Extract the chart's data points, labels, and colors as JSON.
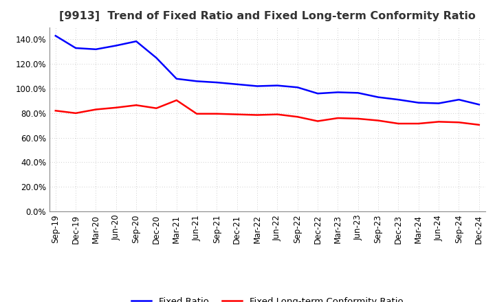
{
  "title": "[9913]  Trend of Fixed Ratio and Fixed Long-term Conformity Ratio",
  "x_labels": [
    "Sep-19",
    "Dec-19",
    "Mar-20",
    "Jun-20",
    "Sep-20",
    "Dec-20",
    "Mar-21",
    "Jun-21",
    "Sep-21",
    "Dec-21",
    "Mar-22",
    "Jun-22",
    "Sep-22",
    "Dec-22",
    "Mar-23",
    "Jun-23",
    "Sep-23",
    "Dec-23",
    "Mar-24",
    "Jun-24",
    "Sep-24",
    "Dec-24"
  ],
  "fixed_ratio": [
    143.0,
    133.0,
    132.0,
    135.0,
    138.5,
    125.0,
    108.0,
    106.0,
    105.0,
    103.5,
    102.0,
    102.5,
    101.0,
    96.0,
    97.0,
    96.5,
    93.0,
    91.0,
    88.5,
    88.0,
    91.0,
    87.0
  ],
  "fixed_lt_ratio": [
    82.0,
    80.0,
    83.0,
    84.5,
    86.5,
    84.0,
    90.5,
    79.5,
    79.5,
    79.0,
    78.5,
    79.0,
    77.0,
    73.5,
    76.0,
    75.5,
    74.0,
    71.5,
    71.5,
    73.0,
    72.5,
    70.5
  ],
  "fixed_ratio_color": "#0000FF",
  "fixed_lt_ratio_color": "#FF0000",
  "background_color": "#FFFFFF",
  "plot_bg_color": "#FFFFFF",
  "grid_color": "#BBBBBB",
  "ylim": [
    0,
    150
  ],
  "yticks": [
    0,
    20,
    40,
    60,
    80,
    100,
    120,
    140
  ],
  "legend_fixed_ratio": "Fixed Ratio",
  "legend_fixed_lt_ratio": "Fixed Long-term Conformity Ratio",
  "title_fontsize": 11.5,
  "tick_fontsize": 8.5,
  "legend_fontsize": 9.5,
  "line_width": 1.8
}
